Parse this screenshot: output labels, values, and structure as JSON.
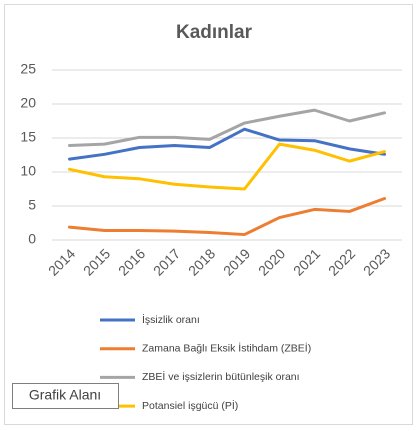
{
  "chart_data": {
    "type": "line",
    "title": "Kadınlar",
    "categories": [
      "2014",
      "2015",
      "2016",
      "2017",
      "2018",
      "2019",
      "2020",
      "2021",
      "2022",
      "2023"
    ],
    "series": [
      {
        "name": "İşsizlik oranı",
        "color": "#4472c4",
        "values": [
          11.9,
          12.6,
          13.6,
          13.9,
          13.6,
          16.3,
          14.7,
          14.6,
          13.4,
          12.6
        ]
      },
      {
        "name": "Zamana Bağlı Eksik İstihdam (ZBEİ)",
        "color": "#ed7d31",
        "values": [
          1.9,
          1.4,
          1.4,
          1.3,
          1.1,
          0.8,
          3.3,
          4.5,
          4.2,
          6.1
        ]
      },
      {
        "name": "ZBEİ ve işsizlerin bütünleşik oranı",
        "color": "#a5a5a5",
        "values": [
          13.9,
          14.1,
          15.1,
          15.1,
          14.8,
          17.2,
          18.2,
          19.1,
          17.5,
          18.7
        ]
      },
      {
        "name": "Potansiel işgücü (Pİ)",
        "color": "#ffc000",
        "values": [
          10.4,
          9.3,
          9.0,
          8.2,
          7.8,
          7.5,
          14.1,
          13.2,
          11.6,
          13.0
        ]
      }
    ],
    "ylim": [
      0,
      25
    ],
    "yticks": [
      0,
      5,
      10,
      15,
      20,
      25
    ],
    "grid": true,
    "legend": "bottom",
    "tooltip": "Grafik Alanı"
  }
}
